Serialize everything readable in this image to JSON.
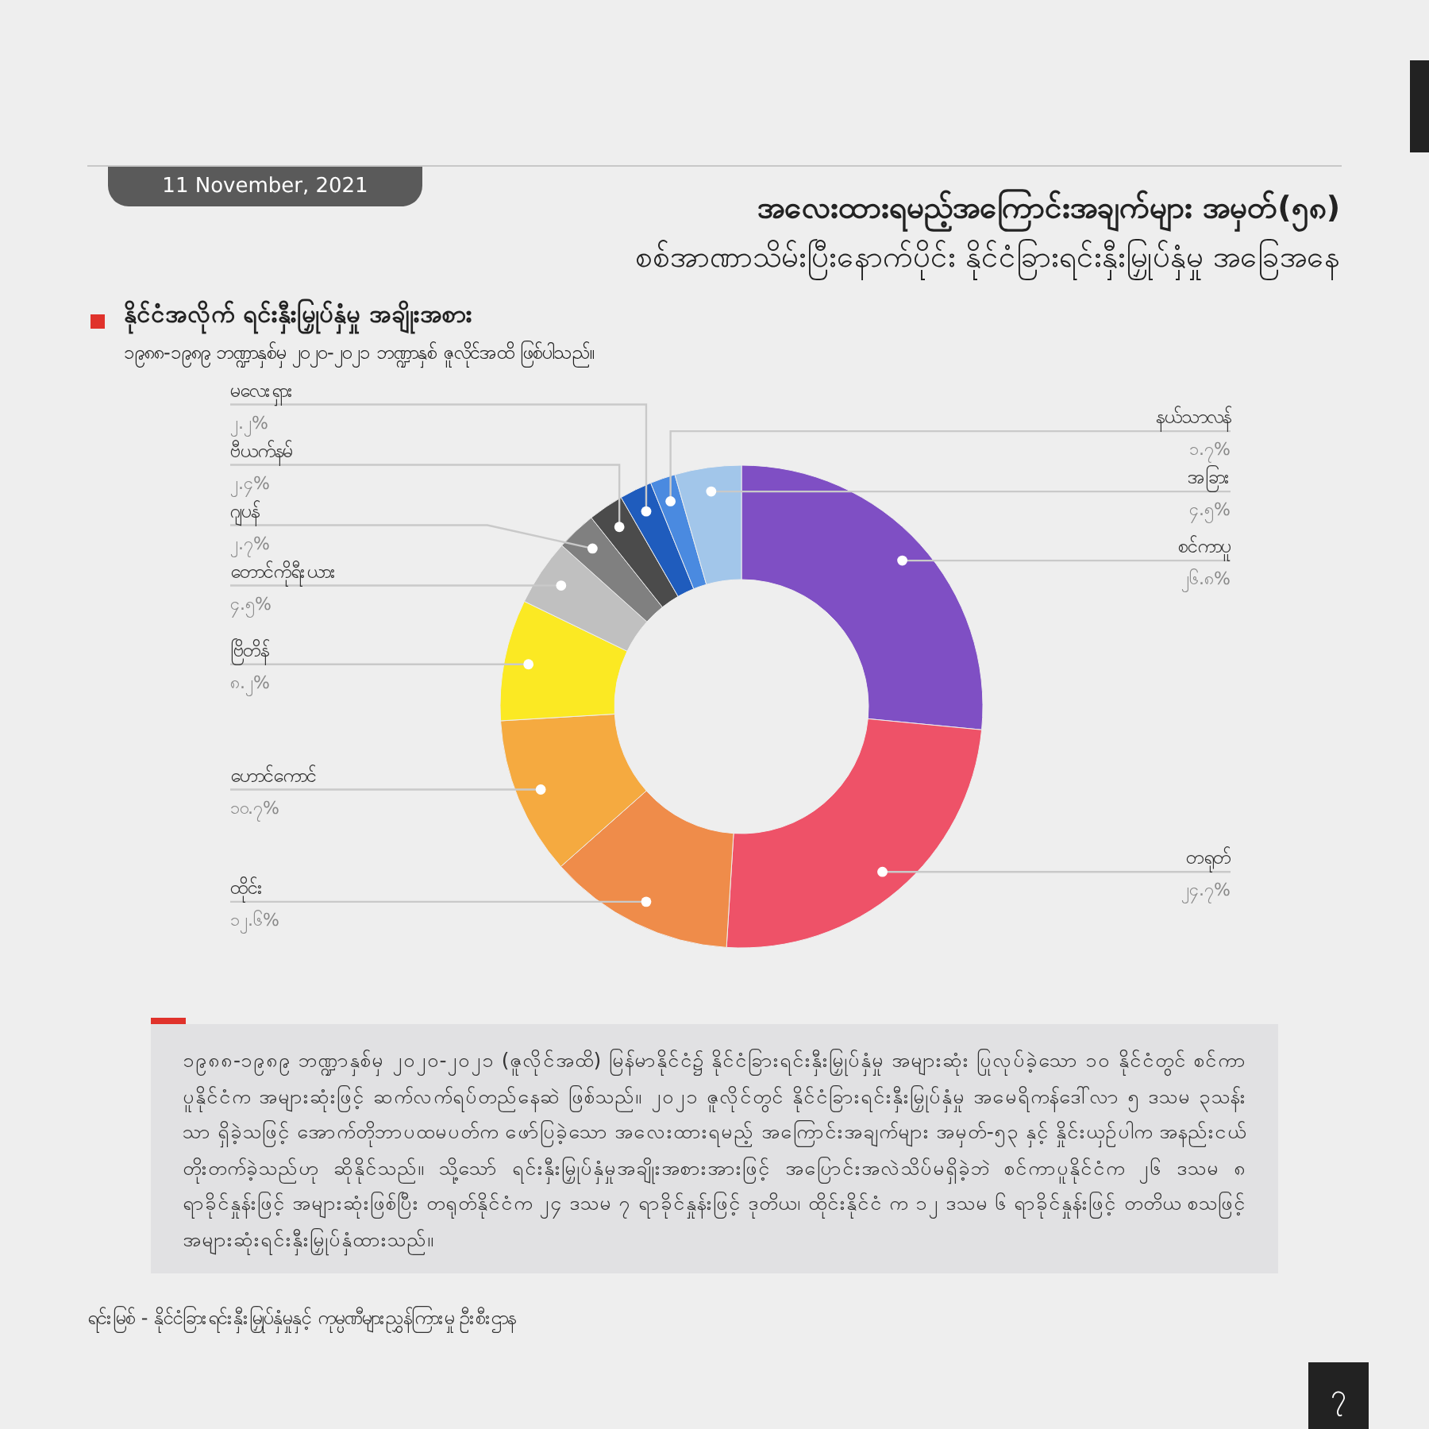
{
  "chart_data": {
    "type": "donut",
    "title": "နိုင်ငံအလိုက် ရင်းနှီးမြှုပ်နှံမှု အချိုးအစား",
    "subtitle": "၁၉၈၈-၁၉၈၉ ဘဏ္ဍာနှစ်မှ ၂၀၂၀-၂၀၂၁ ဘဏ္ဍာနှစ် ဇူလိုင်အထိ ဖြစ်ပါသည်။",
    "categories": [
      "စင်ကာပူ",
      "တရုတ်",
      "ထိုင်း",
      "ဟောင်ကောင်",
      "ဗြိတိန်",
      "တောင်ကိုရီးယား",
      "ဂျပန်",
      "ဗီယက်နမ်",
      "မလေးရှား",
      "နယ်သာလန်",
      "အခြား"
    ],
    "values": [
      26.8,
      24.7,
      12.6,
      10.7,
      8.2,
      4.5,
      2.7,
      2.4,
      2.2,
      1.7,
      4.5
    ],
    "value_labels": [
      "၂၆.၈%",
      "၂၄.၇%",
      "၁၂.၆%",
      "၁၀.၇%",
      "၈.၂%",
      "၄.၅%",
      "၂.၇%",
      "၂.၄%",
      "၂.၂%",
      "၁.၇%",
      "၄.၅%"
    ],
    "colors": [
      "#7f4fc4",
      "#ee5268",
      "#ef8c4a",
      "#f5aa40",
      "#fbe923",
      "#c0c0c0",
      "#808080",
      "#4b4b4b",
      "#1f5cbd",
      "#4a8ae0",
      "#a2c6ea"
    ],
    "annotations": [
      "11 November, 2021",
      "အလေးထားရမည့်အကြောင်းအချက်များ အမှတ်(၅၈)",
      "စစ်အာဏာသိမ်းပြီးနောက်ပိုင်း နိုင်ငံခြားရင်းနှီးမြှုပ်နှံမှု အခြေအနေ",
      "၁၉၈၈-၁၉၈၉ ဘဏ္ဍာနှစ်မှ ၂၀၂၀-၂၀၂၁ (ဇူလိုင်အထိ) မြန်မာနိုင်ငံ၌ နိုင်ငံခြားရင်းနှီးမြှုပ်နှံမှု အများဆုံး ပြုလုပ်ခဲ့သော ၁၀ နိုင်ငံတွင် စင်ကာပူနိုင်ငံက အများဆုံးဖြင့် ဆက်လက်ရပ်တည်နေဆဲ ဖြစ်သည်။ ၂၀၂၁ ဇူလိုင်တွင် နိုင်ငံခြားရင်းနှီးမြှုပ်နှံမှု အမေရိကန်ဒေါ်လာ ၅ ဒသမ ၃သန်းသာ ရှိခဲ့သဖြင့် အောက်တိုဘာပထမပတ်က ဖော်ပြခဲ့သော အလေးထားရမည့် အကြောင်းအချက်များ အမှတ်-၅၃ နှင့် နှိုင်းယှဉ်ပါက အနည်းငယ် တိုးတက်ခဲ့သည်ဟု ဆိုနိုင်သည်။ သို့သော် ရင်းနှီးမြှုပ်နှံမှုအချိုးအစားအားဖြင့် အပြောင်းအလဲသိပ်မရှိခဲ့ဘဲ စင်ကာပူနိုင်ငံက ၂၆ ဒသမ ၈ ရာခိုင်နှုန်းဖြင့် အများဆုံးဖြစ်ပြီး တရုတ်နိုင်ငံက ၂၄ ဒသမ ၇ ရာခိုင်နှုန်းဖြင့် ဒုတိယ၊ ထိုင်းနိုင်ငံ က ၁၂ ဒသမ ၆ ရာခိုင်နှုန်းဖြင့် တတိယ စသဖြင့် အများဆုံးရင်းနှီးမြှုပ်နှံထားသည်။",
      "ရင်းမြစ် -   နိုင်ငံခြားရင်းနှီးမြှုပ်နှံမှုနှင့် ကုမ္ပဏီများညွှန်ကြားမှု ဦးစီးဌာန",
      "၇"
    ]
  }
}
